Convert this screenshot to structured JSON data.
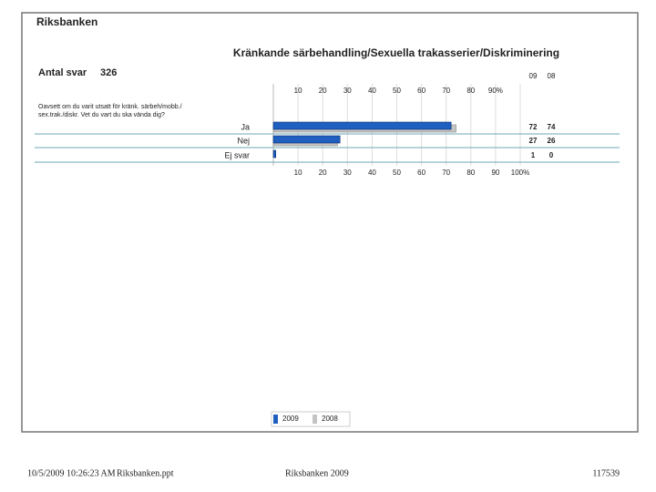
{
  "slide_title": "Riksbanken",
  "footer": {
    "timestamp": "10/5/2009 10:26:23 AM",
    "file": "Riksbanken.ppt",
    "center": "Riksbanken 2009",
    "number": "117539"
  },
  "chart_data": {
    "type": "bar",
    "orientation": "horizontal",
    "title": "Kränkande särbehandling/Sexuella trakasserier/Diskriminering",
    "responses_label": "Antal svar",
    "responses": 326,
    "question": [
      "Oavsett om du varit utsatt för kränk. särbeh/mobb./",
      "sex.trak./diskr. Vet du vart du ska vända dig?"
    ],
    "categories": [
      "Ja",
      "Nej",
      "Ej svar"
    ],
    "series": [
      {
        "name": "2009",
        "column_label": "09",
        "color": "#1f5fbf",
        "values": [
          72,
          27,
          1
        ]
      },
      {
        "name": "2008",
        "column_label": "08",
        "color": "#c4c4c4",
        "values": [
          74,
          26,
          0
        ]
      }
    ],
    "xlim": [
      0,
      100
    ],
    "xticks_top": [
      10,
      20,
      30,
      40,
      50,
      60,
      70,
      80,
      {
        "value": 90,
        "label": "90%"
      }
    ],
    "xticks": [
      10,
      20,
      30,
      40,
      50,
      60,
      70,
      80,
      90,
      {
        "value": 100,
        "label": "100%"
      }
    ],
    "grid": true
  }
}
